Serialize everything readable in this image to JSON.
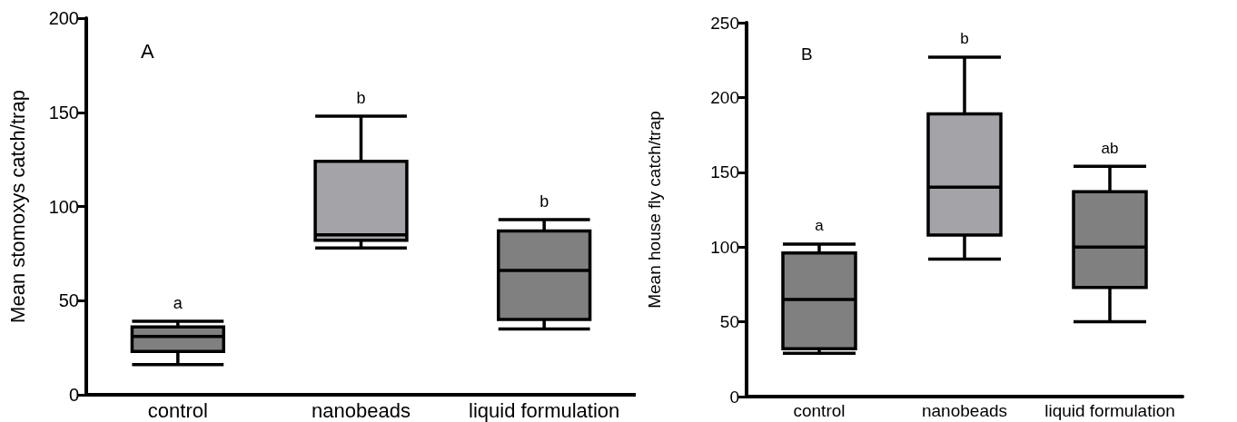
{
  "chart_data": [
    {
      "type": "box",
      "ylabel": "Mean stomoxys catch/trap",
      "categories": [
        "control",
        "nanobeads",
        "liquid formulation"
      ],
      "boxes": [
        {
          "low": 16,
          "q1": 23,
          "median": 31,
          "q3": 36,
          "high": 39
        },
        {
          "low": 78,
          "q1": 82,
          "median": 85,
          "q3": 124,
          "high": 148
        },
        {
          "low": 35,
          "q1": 40,
          "median": 66,
          "q3": 87,
          "high": 93
        }
      ],
      "colors": [
        "#808080",
        "#a3a3a8",
        "#808080"
      ],
      "ylim": [
        0,
        200
      ],
      "yticks": [
        0,
        50,
        100,
        150,
        200
      ],
      "grid": false,
      "annotations": [
        "A",
        "a",
        "b",
        "b"
      ]
    },
    {
      "type": "box",
      "ylabel": "Mean house fly catch/trap",
      "categories": [
        "control",
        "nanobeads",
        "liquid formulation"
      ],
      "boxes": [
        {
          "low": 29,
          "q1": 32,
          "median": 65,
          "q3": 96,
          "high": 102
        },
        {
          "low": 92,
          "q1": 108,
          "median": 140,
          "q3": 189,
          "high": 227
        },
        {
          "low": 50,
          "q1": 73,
          "median": 100,
          "q3": 137,
          "high": 154
        }
      ],
      "colors": [
        "#808080",
        "#a3a3a8",
        "#808080"
      ],
      "ylim": [
        0,
        250
      ],
      "yticks": [
        0,
        50,
        100,
        150,
        200,
        250
      ],
      "grid": false,
      "annotations": [
        "B",
        "a",
        "b",
        "ab"
      ]
    }
  ]
}
